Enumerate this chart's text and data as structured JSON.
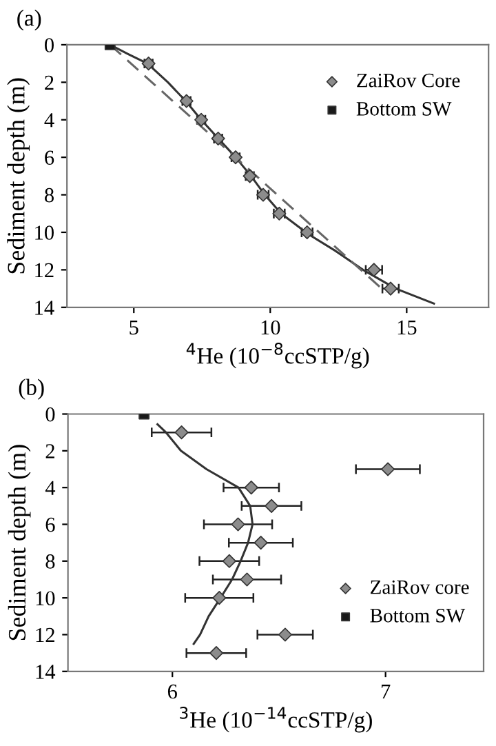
{
  "chart_data": [
    {
      "type": "scatter",
      "title": "(a)",
      "xlabel": "$^{4}$He (10$^{−8}$ccSTP/g)",
      "ylabel": "Sediment depth (m)",
      "xlim": [
        2.55,
        18
      ],
      "xticks": [
        5,
        10,
        15
      ],
      "ylim": [
        14,
        0
      ],
      "yticks": [
        0,
        2,
        4,
        6,
        8,
        10,
        12,
        14
      ],
      "grid": false,
      "legend": "top right",
      "series": [
        {
          "name": "ZaiRov Core",
          "marker": "diamond",
          "color": "#8c8c8c",
          "x": [
            5.54,
            6.93,
            7.47,
            8.09,
            8.73,
            9.25,
            9.74,
            10.33,
            11.35,
            13.8,
            14.41
          ],
          "values": [
            1,
            3,
            4,
            5,
            6,
            7,
            8,
            9,
            10,
            12,
            13
          ],
          "xerrors": [
            0.15,
            0.15,
            0.15,
            0.15,
            0.15,
            0.15,
            0.2,
            0.2,
            0.2,
            0.3,
            0.3
          ]
        },
        {
          "name": "Bottom SW",
          "type": "scatter",
          "marker": "square",
          "color": "#1a1a1a",
          "x": [
            4.13
          ],
          "values": [
            0
          ]
        },
        {
          "type": "line",
          "marker": "none",
          "line_style": "solid",
          "color": "#333333",
          "x": [
            4.13,
            4.8,
            5.5,
            6.25,
            6.9,
            7.47,
            8.1,
            8.73,
            9.3,
            9.8,
            10.4,
            11.4,
            12.4,
            13.4,
            14.6,
            16.0
          ],
          "values": [
            0,
            0.5,
            1,
            2,
            3,
            4,
            5,
            6,
            7,
            8,
            9,
            10.1,
            11,
            12,
            13,
            13.8
          ]
        },
        {
          "type": "line",
          "marker": "none",
          "line_style": "dashed",
          "color": "#666666",
          "x": [
            4.13,
            14.24
          ],
          "values": [
            0,
            13.2
          ]
        }
      ]
    },
    {
      "type": "scatter",
      "title": "(b)",
      "xlabel": "$^{3}$He (10$^{−14}$ccSTP/g)",
      "ylabel": "Sediment depth (m)",
      "xlim": [
        5.51,
        7.46
      ],
      "xticks": [
        6,
        7
      ],
      "ylim": [
        14,
        0
      ],
      "yticks": [
        0,
        2,
        4,
        6,
        8,
        10,
        12,
        14
      ],
      "grid": false,
      "legend": "bottom right",
      "series": [
        {
          "name": "ZaiRov core",
          "marker": "diamond",
          "color": "#8c8c8c",
          "x": [
            6.043,
            7.011,
            6.37,
            6.465,
            6.308,
            6.415,
            6.267,
            6.35,
            6.22,
            6.529,
            6.206
          ],
          "values": [
            1,
            3,
            4,
            5,
            6,
            7,
            8,
            9,
            10,
            12,
            13
          ],
          "xerrors": [
            0.14,
            0.15,
            0.13,
            0.14,
            0.16,
            0.15,
            0.14,
            0.16,
            0.16,
            0.13,
            0.14
          ]
        },
        {
          "name": "Bottom SW",
          "type": "scatter",
          "marker": "square",
          "color": "#1a1a1a",
          "x": [
            5.867
          ],
          "values": [
            0
          ]
        },
        {
          "type": "line",
          "marker": "none",
          "line_style": "solid",
          "color": "#333333",
          "x": [
            5.93,
            5.97,
            6.04,
            6.16,
            6.31,
            6.365,
            6.376,
            6.355,
            6.32,
            6.28,
            6.226,
            6.17,
            6.13,
            6.1
          ],
          "values": [
            0.56,
            1,
            2,
            3,
            4,
            5,
            6,
            7,
            8,
            9,
            10,
            11,
            12,
            12.5
          ]
        }
      ]
    }
  ]
}
